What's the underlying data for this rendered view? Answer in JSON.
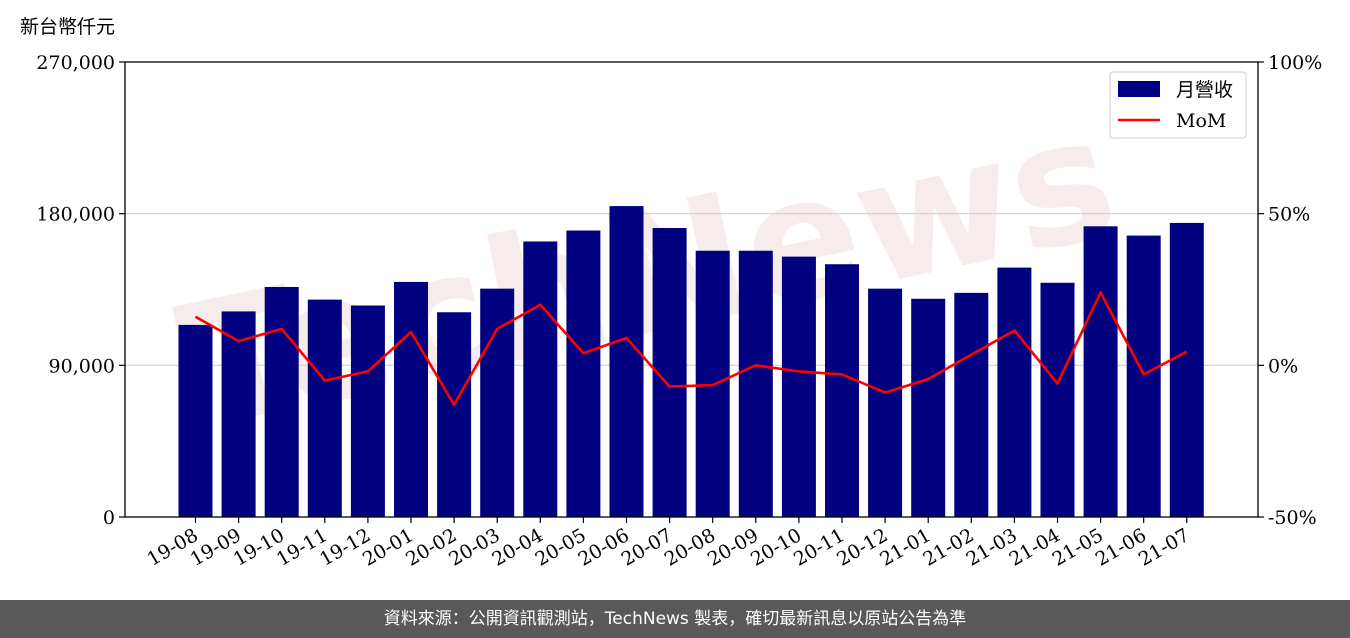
{
  "watermark": "TechNews",
  "footer": "資料來源：公開資訊觀測站，TechNews 製表，確切最新訊息以原站公告為準",
  "chart_data": {
    "type": "bar",
    "unit_label": "新台幣仟元",
    "categories": [
      "19-08",
      "19-09",
      "19-10",
      "19-11",
      "19-12",
      "20-01",
      "20-02",
      "20-03",
      "20-04",
      "20-05",
      "20-06",
      "20-07",
      "20-08",
      "20-09",
      "20-10",
      "20-11",
      "20-12",
      "21-01",
      "21-02",
      "21-03",
      "21-04",
      "21-05",
      "21-06",
      "21-07"
    ],
    "series": [
      {
        "name": "月營收",
        "type": "bar",
        "axis": "left",
        "color": "#000080",
        "values": [
          114000,
          122000,
          136500,
          129000,
          125500,
          139500,
          121500,
          135500,
          163500,
          170000,
          184500,
          171500,
          158000,
          158000,
          154500,
          150000,
          135500,
          129500,
          133000,
          148000,
          139000,
          172500,
          167000,
          174500
        ]
      },
      {
        "name": "MoM",
        "type": "line",
        "axis": "right",
        "color": "#ff0000",
        "values": [
          16,
          8,
          12,
          -5,
          -2,
          11,
          -13,
          12,
          20,
          4,
          9,
          -7,
          -6.5,
          0,
          -2,
          -3,
          -9,
          -4.5,
          3.5,
          11.5,
          -6,
          24,
          -3,
          4.5
        ]
      }
    ],
    "y_left": {
      "ticks": [
        0,
        90000,
        180000,
        270000
      ],
      "tick_labels": [
        "0",
        "90,000",
        "180,000",
        "270,000"
      ],
      "ylim": [
        0,
        270000
      ]
    },
    "y_right": {
      "ticks": [
        -50,
        0,
        50,
        100
      ],
      "tick_labels": [
        "-50%",
        "0%",
        "50%",
        "100%"
      ],
      "ylim": [
        -50,
        100
      ]
    },
    "grid": "horizontal",
    "legend_position": "top-right"
  }
}
